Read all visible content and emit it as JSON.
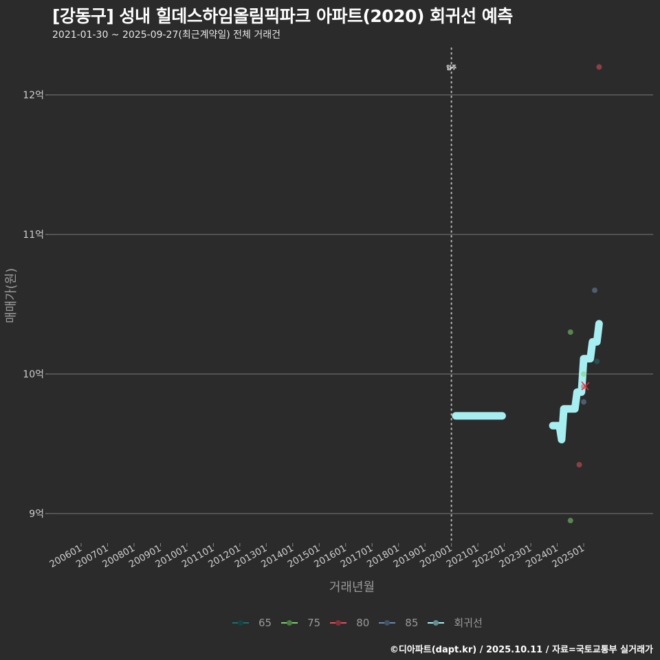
{
  "header": {
    "title": "[강동구] 성내 힐데스하임올림픽파크 아파트(2020) 회귀선 예측",
    "subtitle": "2021-01-30 ~ 2025-09-27(최근계약일) 전체 거래건"
  },
  "footer": {
    "credit": "©디아파트(dapt.kr) / 2025.10.11 / 자료=국토교통부 실거래가"
  },
  "legend": {
    "items": [
      {
        "label": "65",
        "color": "#1f6f6f"
      },
      {
        "label": "75",
        "color": "#7fcf6f"
      },
      {
        "label": "80",
        "color": "#e0505a"
      },
      {
        "label": "85",
        "color": "#6a88aa"
      },
      {
        "label": "회귀선",
        "color": "#a6eef0"
      }
    ]
  },
  "chart_data": {
    "type": "scatter",
    "title": "[강동구] 성내 힐데스하임올림픽파크 아파트(2020) 회귀선 예측",
    "subtitle": "2021-01-30 ~ 2025-09-27(최근계약일) 전체 거래건",
    "xlabel": "거래년월",
    "ylabel": "매매가(원)",
    "x_ticks": [
      "200601",
      "200701",
      "200801",
      "200901",
      "201001",
      "201101",
      "201201",
      "201301",
      "201401",
      "201501",
      "201601",
      "201701",
      "201801",
      "201901",
      "202001",
      "202101",
      "202201",
      "202301",
      "202401",
      "202501"
    ],
    "y_ticks": [
      "9억",
      "10억",
      "11억",
      "12억"
    ],
    "y_tick_values": [
      9.0,
      10.0,
      11.0,
      12.0
    ],
    "ylim": [
      8.7,
      12.35
    ],
    "grid": "horizontal major lines",
    "legend_position": "bottom",
    "annotations": [
      {
        "type": "vline",
        "x": "202001",
        "label": "입주",
        "style": "dotted"
      }
    ],
    "series": [
      {
        "name": "65",
        "color": "#1f6f6f",
        "points": [
          {
            "x": "2025-07",
            "y": 10.09
          }
        ]
      },
      {
        "name": "75",
        "color": "#7fcf6f",
        "points": [
          {
            "x": "2024-07",
            "y": 10.3
          },
          {
            "x": "2025-01",
            "y": 10.0
          },
          {
            "x": "2024-07",
            "y": 8.95
          }
        ]
      },
      {
        "name": "80",
        "color": "#e0505a",
        "points": [
          {
            "x": "2025-08",
            "y": 12.2
          },
          {
            "x": "2025-01",
            "y": 9.91
          },
          {
            "x": "2024-11",
            "y": 9.35
          }
        ]
      },
      {
        "name": "85",
        "color": "#6a88aa",
        "points": [
          {
            "x": "2025-06",
            "y": 10.6
          },
          {
            "x": "2025-01",
            "y": 9.8
          }
        ]
      },
      {
        "name": "회귀선",
        "color": "#a6eef0",
        "type": "line",
        "segments": [
          [
            {
              "x": "2020-03",
              "y": 9.7
            },
            {
              "x": "2022-00",
              "y": 9.7
            }
          ],
          [
            {
              "x": "2023-11",
              "y": 9.63
            },
            {
              "x": "2024-02",
              "y": 9.63
            },
            {
              "x": "2024-03",
              "y": 9.53
            },
            {
              "x": "2024-04",
              "y": 9.75
            },
            {
              "x": "2024-09",
              "y": 9.75
            },
            {
              "x": "2024-10",
              "y": 9.87
            },
            {
              "x": "2024-12",
              "y": 9.87
            },
            {
              "x": "2025-01",
              "y": 10.11
            },
            {
              "x": "2025-04",
              "y": 10.11
            },
            {
              "x": "2025-05",
              "y": 10.23
            },
            {
              "x": "2025-07",
              "y": 10.23
            },
            {
              "x": "2025-08",
              "y": 10.36
            }
          ]
        ]
      }
    ]
  },
  "axes": {
    "xlabel": "거래년월",
    "ylabel": "매매가(원)",
    "vline_label": "입주"
  }
}
